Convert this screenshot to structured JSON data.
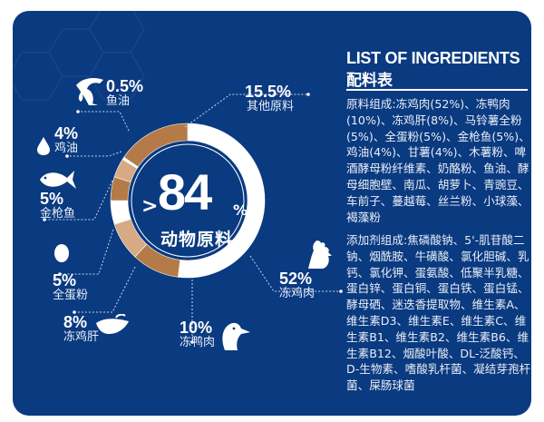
{
  "panel": {
    "title_en": "LIST OF INGREDIENTS",
    "title_cn": "配料表",
    "ingredients_text": "原料组成:冻鸡肉(52%)、冻鸭肉(10%)、冻鸡肝(8%)、马铃薯全粉(5%)、全蛋粉(5%)、金枪鱼(5%)、鸡油(4%)、甘薯(4%)、木薯粉、啤酒酵母粉纤维素、奶酪粉、鱼油、酵母细胞壁、南瓜、胡萝卜、青豌豆、车前子、蔓越莓、丝兰粉、小球藻、褐藻粉",
    "additives_text": "添加剂组成:焦磷酸钠、5'-肌苷酸二钠、烟酰胺、牛磺酸、氯化胆碱、乳钙、氯化钾、蛋氨酸、低聚半乳糖、蛋白锌、蛋白铜、蛋白铁、蛋白锰、酵母硒、迷迭香提取物、维生素A、维生素D3、维生素E、维生素C、维生素B1、维生素B2、维生素B6、维生素B12、烟酸叶酸、DL-泛酸钙、D-生物素、嗜酸乳杆菌、凝结芽孢杆菌、屎肠球菌"
  },
  "center": {
    "prefix": ">",
    "value": "84",
    "suffix": "%",
    "label": "动物原料"
  },
  "labels": {
    "fish_oil": {
      "value": "0.5%",
      "name": "鱼油",
      "icon": "fish-oil-icon"
    },
    "other": {
      "value": "15.5%",
      "name": "其他原料"
    },
    "chicken_oil": {
      "value": "4%",
      "name": "鸡油",
      "icon": "drop-icon"
    },
    "tuna": {
      "value": "5%",
      "name": "金枪鱼",
      "icon": "tuna-icon"
    },
    "egg": {
      "value": "5%",
      "name": "全蛋粉",
      "icon": "egg-icon"
    },
    "chicken_liver": {
      "value": "8%",
      "name": "冻鸡肝",
      "icon": "liver-icon"
    },
    "duck": {
      "value": "10%",
      "name": "冻鸭肉",
      "icon": "duck-icon"
    },
    "chicken": {
      "value": "52%",
      "name": "冻鸡肉",
      "icon": "rooster-icon"
    }
  },
  "colors": {
    "background": "#0a3a80",
    "brown": "#b47a48",
    "tan": "#d7aa83",
    "white": "#ffffff"
  },
  "chart_data": {
    "type": "pie",
    "title": ">84% 动物原料",
    "categories": [
      "冻鸡肉",
      "冻鸭肉",
      "冻鸡肝",
      "全蛋粉",
      "金枪鱼",
      "鸡油",
      "鱼油",
      "其他原料"
    ],
    "values": [
      52,
      10,
      8,
      5,
      5,
      4,
      0.5,
      15.5
    ],
    "colors": [
      "#ffffff",
      "#b47a48",
      "#d7aa83",
      "#ffffff",
      "#b47a48",
      "#d7aa83",
      "#ffffff",
      "#b47a48"
    ],
    "donut": true,
    "start_angle": "12 o'clock, clockwise",
    "center_annotation": ">84% 动物原料"
  }
}
